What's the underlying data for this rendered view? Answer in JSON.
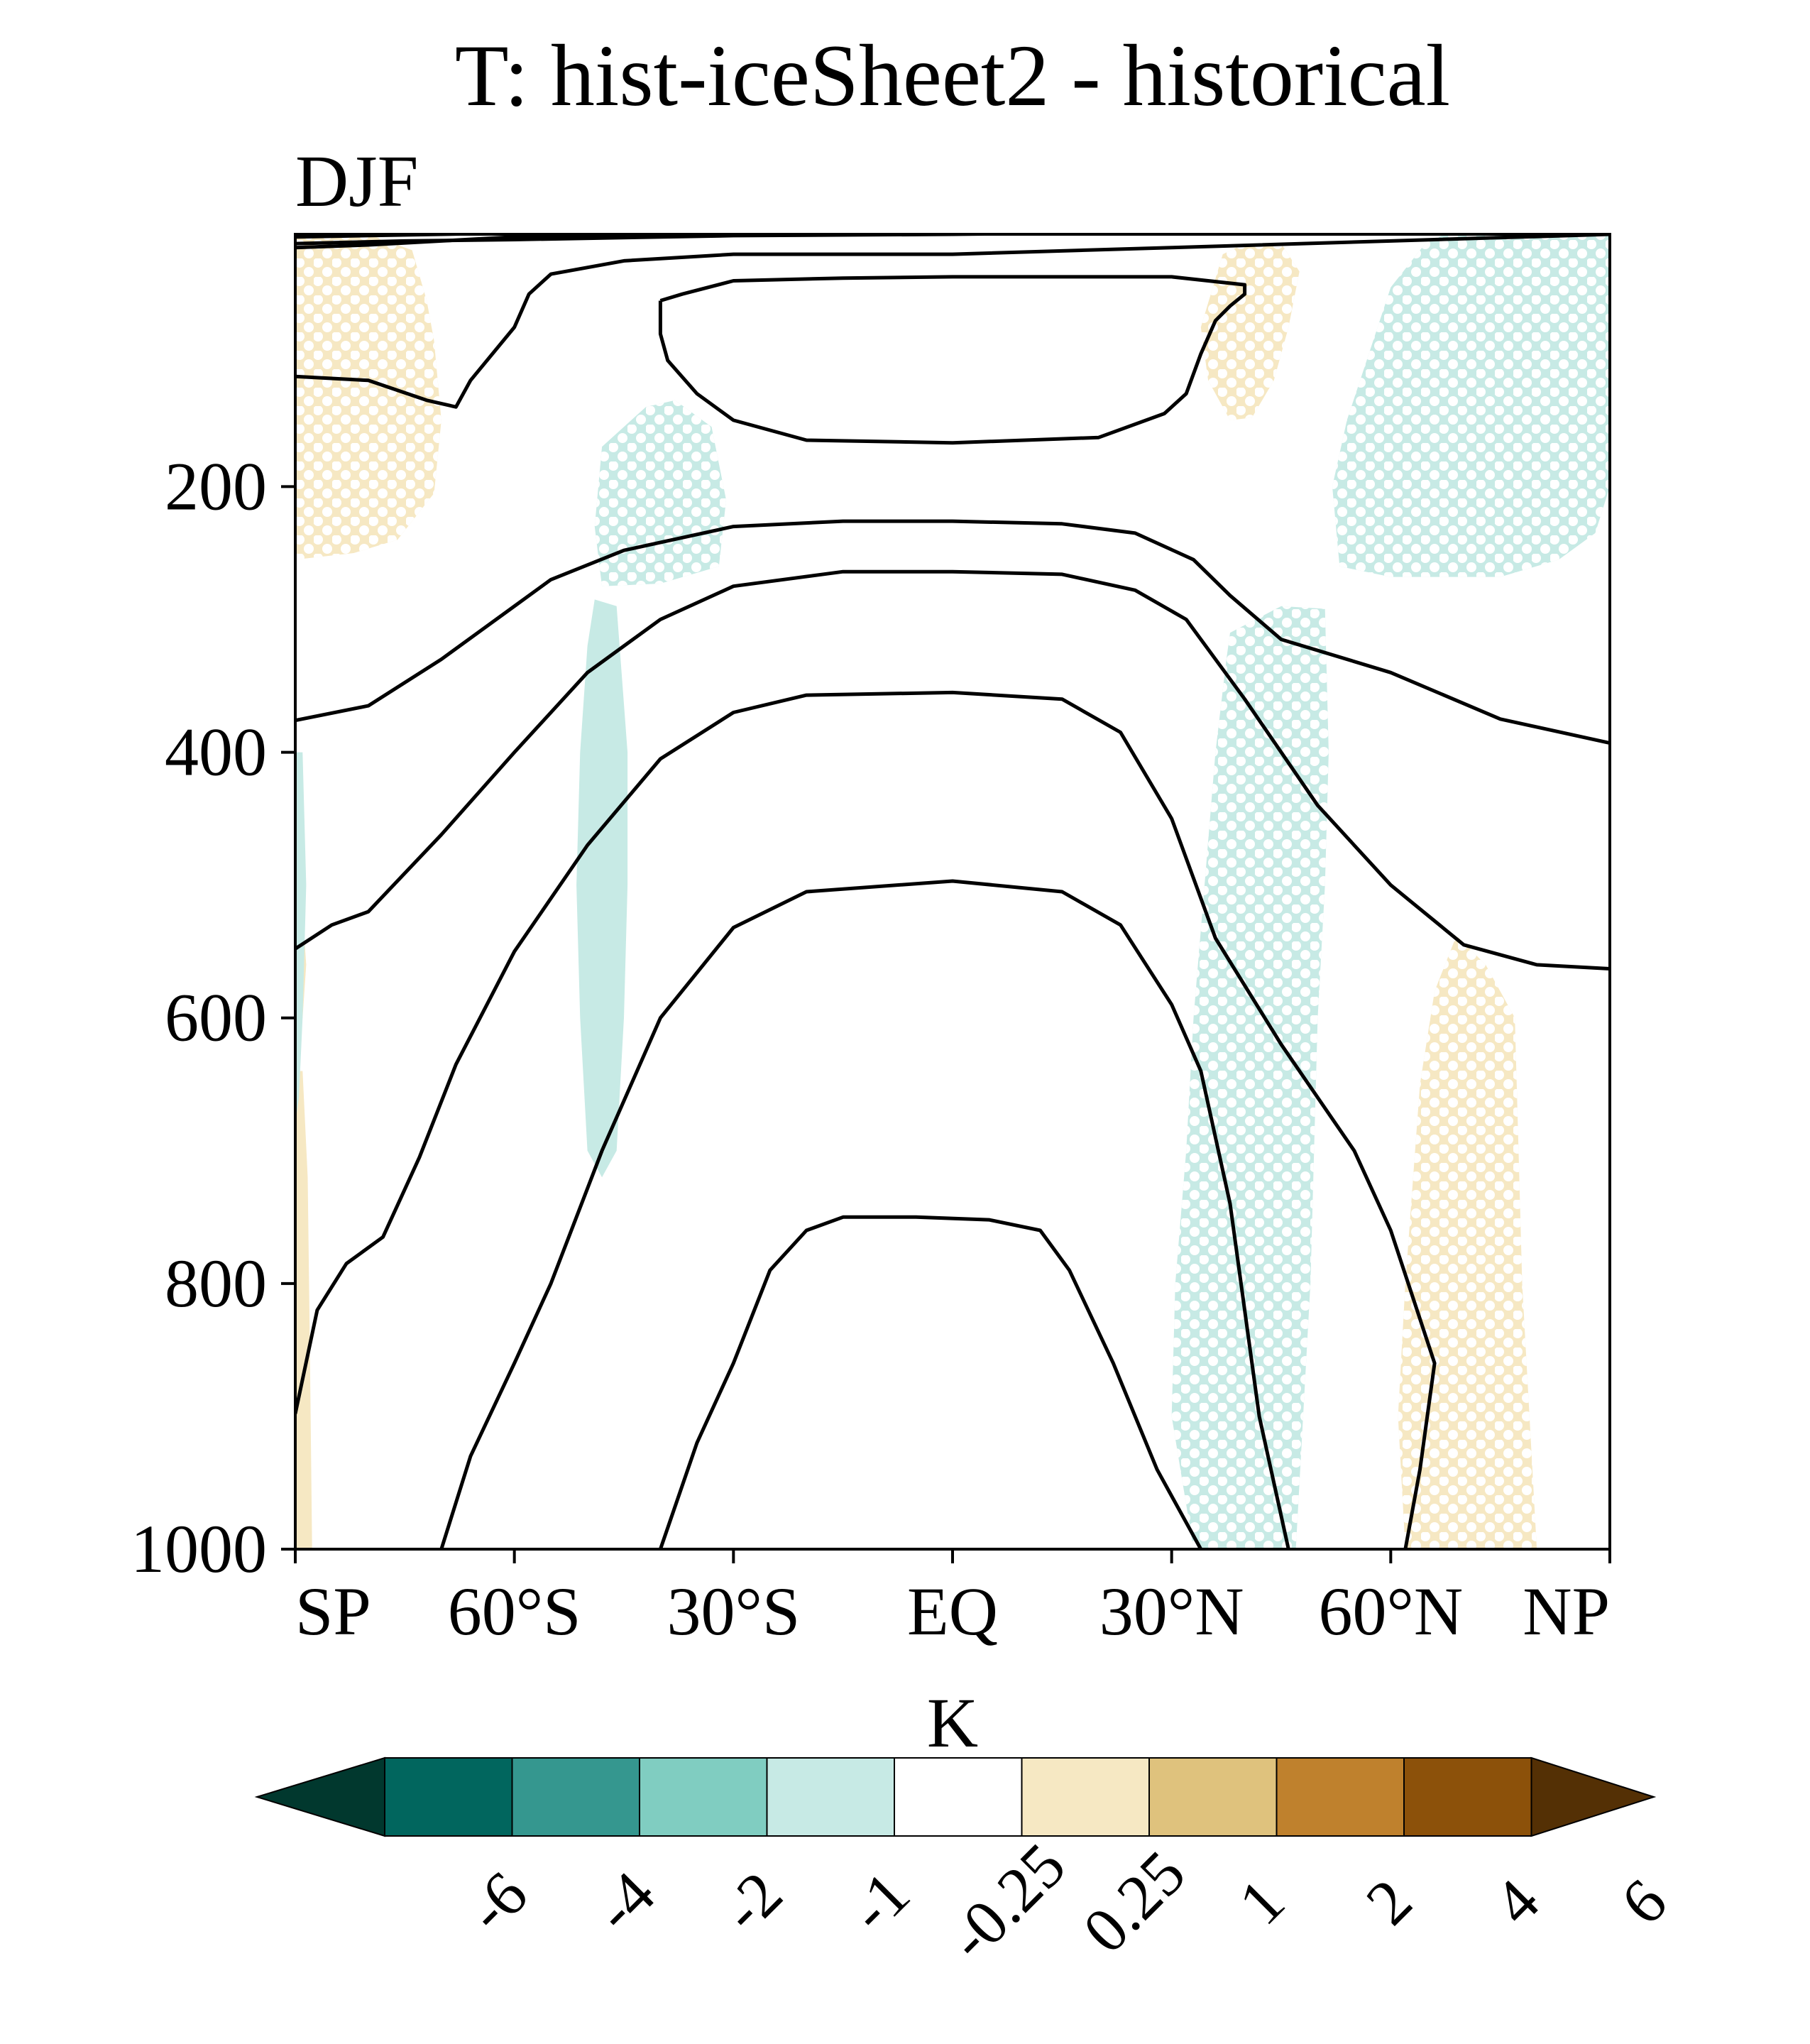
{
  "chart_data": {
    "type": "heatmap",
    "title": "T: hist-iceSheet2 - historical",
    "subtitle": "DJF",
    "x": {
      "tick_values": [
        -90,
        -60,
        -30,
        0,
        30,
        60,
        90
      ],
      "tick_labels": [
        "SP",
        "60°S",
        "30°S",
        "EQ",
        "30°N",
        "60°N",
        "NP"
      ],
      "range": [
        -90,
        90
      ]
    },
    "y": {
      "tick_values": [
        200,
        400,
        600,
        800,
        1000
      ],
      "tick_labels": [
        "200",
        "400",
        "600",
        "800",
        "1000"
      ],
      "range": [
        10,
        1000
      ],
      "inverted": true
    },
    "colorbar": {
      "unit": "K",
      "levels": [
        "-6",
        "-4",
        "-2",
        "-1",
        "-0.25",
        "0.25",
        "1",
        "2",
        "4",
        "6"
      ],
      "colors": [
        "#01382e",
        "#01665e",
        "#35978f",
        "#80cdc1",
        "#c7eae5",
        "#ffffff",
        "#f6e8c3",
        "#dfc27d",
        "#bf812d",
        "#8c510a",
        "#543005"
      ],
      "extend": "both"
    },
    "colors": {
      "warm_fill": "#f6e8c3",
      "cool_fill": "#c7eae5",
      "contour": "#000000",
      "stipple": "#ffffff"
    },
    "anomaly_regions": [
      {
        "sign": "positive",
        "level": "0.25 to 1",
        "stippled": true,
        "points": [
          [
            -90,
            10
          ],
          [
            -80,
            10
          ],
          [
            -74,
            22
          ],
          [
            -72,
            60
          ],
          [
            -71,
            90
          ],
          [
            -70,
            150
          ],
          [
            -71,
            205
          ],
          [
            -76,
            240
          ],
          [
            -82,
            250
          ],
          [
            -90,
            255
          ]
        ]
      },
      {
        "sign": "positive",
        "level": "0.25 to 1",
        "stippled": false,
        "points": [
          [
            -90,
            545
          ],
          [
            -89,
            520
          ],
          [
            -88.5,
            560
          ],
          [
            -89,
            600
          ],
          [
            -90,
            620
          ]
        ]
      },
      {
        "sign": "positive",
        "level": "0.25 to 1",
        "stippled": false,
        "points": [
          [
            -90,
            640
          ],
          [
            -89,
            640
          ],
          [
            -88.3,
            720
          ],
          [
            -88,
            850
          ],
          [
            -87.7,
            1000
          ],
          [
            -90,
            1000
          ]
        ]
      },
      {
        "sign": "positive",
        "level": "0.25 to 1",
        "stippled": true,
        "points": [
          [
            37,
            25
          ],
          [
            40,
            17
          ],
          [
            45,
            17
          ],
          [
            47.5,
            38
          ],
          [
            46,
            80
          ],
          [
            44,
            120
          ],
          [
            41,
            148
          ],
          [
            38,
            150
          ],
          [
            35,
            120
          ],
          [
            34,
            80
          ]
        ]
      },
      {
        "sign": "positive",
        "level": "0.25 to 1",
        "stippled": true,
        "points": [
          [
            69,
            538
          ],
          [
            73,
            560
          ],
          [
            77,
            600
          ],
          [
            77.5,
            700
          ],
          [
            78,
            800
          ],
          [
            79,
            900
          ],
          [
            80,
            1000
          ],
          [
            62,
            1000
          ],
          [
            61,
            900
          ],
          [
            62,
            800
          ],
          [
            64,
            650
          ],
          [
            66,
            580
          ]
        ]
      },
      {
        "sign": "negative",
        "level": "-1 to -0.25",
        "stippled": true,
        "points": [
          [
            65,
            15
          ],
          [
            70,
            5
          ],
          [
            85,
            5
          ],
          [
            90,
            10
          ],
          [
            90,
            200
          ],
          [
            88,
            235
          ],
          [
            83,
            255
          ],
          [
            75,
            268
          ],
          [
            60,
            268
          ],
          [
            53,
            260
          ],
          [
            52,
            200
          ],
          [
            54,
            150
          ],
          [
            57,
            100
          ],
          [
            60,
            50
          ]
        ]
      },
      {
        "sign": "negative",
        "level": "-1 to -0.25",
        "stippled": true,
        "points": [
          [
            -42,
            140
          ],
          [
            -38,
            135
          ],
          [
            -33,
            155
          ],
          [
            -31,
            210
          ],
          [
            -32,
            260
          ],
          [
            -40,
            273
          ],
          [
            -48,
            275
          ],
          [
            -49,
            230
          ],
          [
            -48,
            170
          ]
        ]
      },
      {
        "sign": "negative",
        "level": "-1 to -0.25",
        "stippled": false,
        "points": [
          [
            -49,
            285
          ],
          [
            -46,
            290
          ],
          [
            -44.5,
            400
          ],
          [
            -44.5,
            500
          ],
          [
            -45,
            600
          ],
          [
            -46,
            700
          ],
          [
            -48,
            720
          ],
          [
            -50,
            700
          ],
          [
            -51,
            600
          ],
          [
            -51.5,
            500
          ],
          [
            -51,
            400
          ],
          [
            -50,
            320
          ]
        ]
      },
      {
        "sign": "negative",
        "level": "-1 to -0.25",
        "stippled": true,
        "points": [
          [
            38,
            310
          ],
          [
            45,
            290
          ],
          [
            51,
            292
          ],
          [
            51.5,
            400
          ],
          [
            51,
            500
          ],
          [
            50,
            600
          ],
          [
            49.5,
            700
          ],
          [
            49,
            800
          ],
          [
            48,
            900
          ],
          [
            47,
            1000
          ],
          [
            33,
            1000
          ],
          [
            30,
            900
          ],
          [
            30.5,
            800
          ],
          [
            32,
            700
          ],
          [
            33,
            600
          ],
          [
            34.5,
            500
          ],
          [
            36,
            400
          ],
          [
            37.5,
            330
          ]
        ]
      },
      {
        "sign": "negative",
        "level": "-1 to -0.25",
        "stippled": false,
        "points": [
          [
            -90,
            400
          ],
          [
            -89,
            400
          ],
          [
            -88.5,
            500
          ],
          [
            -89,
            600
          ],
          [
            -89.5,
            660
          ],
          [
            -90,
            680
          ]
        ]
      }
    ],
    "contours": [
      [
        [
          -90,
          20
        ],
        [
          -80,
          18
        ],
        [
          -60,
          12
        ],
        [
          -30,
          8
        ],
        [
          0,
          6
        ],
        [
          30,
          4
        ],
        [
          60,
          3
        ],
        [
          90,
          3
        ]
      ],
      [
        [
          -90,
          12
        ],
        [
          -60,
          9
        ],
        [
          -30,
          7
        ],
        [
          0,
          5
        ],
        [
          30,
          4
        ],
        [
          60,
          3
        ],
        [
          90,
          2
        ]
      ],
      [
        [
          -90,
          7
        ],
        [
          -60,
          6
        ],
        [
          -30,
          5
        ],
        [
          0,
          4
        ],
        [
          30,
          3
        ],
        [
          60,
          2
        ],
        [
          90,
          2
        ]
      ],
      [
        [
          -90,
          17
        ],
        [
          -75,
          15
        ],
        [
          -60,
          14
        ],
        [
          -30,
          11
        ],
        [
          0,
          10
        ],
        [
          30,
          8
        ],
        [
          60,
          5
        ],
        [
          90,
          4
        ]
      ],
      [
        [
          -90,
          117
        ],
        [
          -80,
          120
        ],
        [
          -72,
          135
        ],
        [
          -68,
          140
        ],
        [
          -66,
          120
        ],
        [
          -60,
          80
        ],
        [
          -58,
          55
        ],
        [
          -55,
          40
        ],
        [
          -45,
          30
        ],
        [
          -30,
          25
        ],
        [
          0,
          25
        ],
        [
          30,
          20
        ],
        [
          60,
          15
        ],
        [
          90,
          10
        ]
      ],
      [
        [
          -40,
          60
        ],
        [
          -37,
          55
        ],
        [
          -30,
          45
        ],
        [
          -15,
          43
        ],
        [
          0,
          42
        ],
        [
          15,
          42
        ],
        [
          30,
          42
        ],
        [
          40,
          48
        ],
        [
          40,
          55
        ],
        [
          38,
          64
        ],
        [
          36,
          75
        ],
        [
          34,
          100
        ],
        [
          32,
          130
        ],
        [
          29,
          145
        ],
        [
          20,
          163
        ],
        [
          0,
          167
        ],
        [
          -20,
          165
        ],
        [
          -30,
          150
        ],
        [
          -35,
          130
        ],
        [
          -39,
          105
        ],
        [
          -40,
          85
        ],
        [
          -40,
          60
        ]
      ],
      [
        [
          -90,
          376
        ],
        [
          -80,
          365
        ],
        [
          -70,
          330
        ],
        [
          -60,
          290
        ],
        [
          -55,
          270
        ],
        [
          -45,
          248
        ],
        [
          -30,
          230
        ],
        [
          -15,
          226
        ],
        [
          0,
          226
        ],
        [
          15,
          228
        ],
        [
          25,
          235
        ],
        [
          33,
          255
        ],
        [
          38,
          282
        ],
        [
          45,
          315
        ],
        [
          60,
          340
        ],
        [
          75,
          375
        ],
        [
          90,
          393
        ]
      ],
      [
        [
          -90,
          548
        ],
        [
          -85,
          530
        ],
        [
          -80,
          520
        ],
        [
          -70,
          462
        ],
        [
          -60,
          400
        ],
        [
          -50,
          340
        ],
        [
          -40,
          300
        ],
        [
          -30,
          275
        ],
        [
          -15,
          264
        ],
        [
          0,
          264
        ],
        [
          15,
          266
        ],
        [
          25,
          278
        ],
        [
          32,
          300
        ],
        [
          40,
          360
        ],
        [
          50,
          440
        ],
        [
          60,
          500
        ],
        [
          70,
          545
        ],
        [
          80,
          560
        ],
        [
          90,
          563
        ]
      ],
      [
        [
          -90,
          898
        ],
        [
          -87,
          820
        ],
        [
          -83,
          785
        ],
        [
          -78,
          765
        ],
        [
          -73,
          705
        ],
        [
          -68,
          635
        ],
        [
          -60,
          550
        ],
        [
          -50,
          470
        ],
        [
          -40,
          405
        ],
        [
          -30,
          370
        ],
        [
          -20,
          357
        ],
        [
          0,
          355
        ],
        [
          15,
          360
        ],
        [
          23,
          385
        ],
        [
          30,
          450
        ],
        [
          36,
          540
        ],
        [
          45,
          620
        ],
        [
          55,
          700
        ],
        [
          60,
          760
        ],
        [
          66,
          860
        ],
        [
          64,
          940
        ],
        [
          62,
          1000
        ]
      ],
      [
        [
          -90,
          1080
        ],
        [
          -70,
          1000
        ],
        [
          -66,
          930
        ],
        [
          -60,
          860
        ],
        [
          -55,
          800
        ],
        [
          -48,
          700
        ],
        [
          -40,
          600
        ],
        [
          -30,
          532
        ],
        [
          -20,
          505
        ],
        [
          0,
          497
        ],
        [
          15,
          505
        ],
        [
          23,
          530
        ],
        [
          30,
          590
        ],
        [
          34,
          640
        ],
        [
          38,
          740
        ],
        [
          42,
          900
        ],
        [
          46,
          1000
        ]
      ],
      [
        [
          -40,
          1000
        ],
        [
          -35,
          920
        ],
        [
          -30,
          860
        ],
        [
          -25,
          790
        ],
        [
          -20,
          760
        ],
        [
          -15,
          750
        ],
        [
          -5,
          750
        ],
        [
          5,
          752
        ],
        [
          12,
          760
        ],
        [
          16,
          790
        ],
        [
          22,
          860
        ],
        [
          28,
          940
        ],
        [
          34,
          1000
        ]
      ]
    ]
  }
}
